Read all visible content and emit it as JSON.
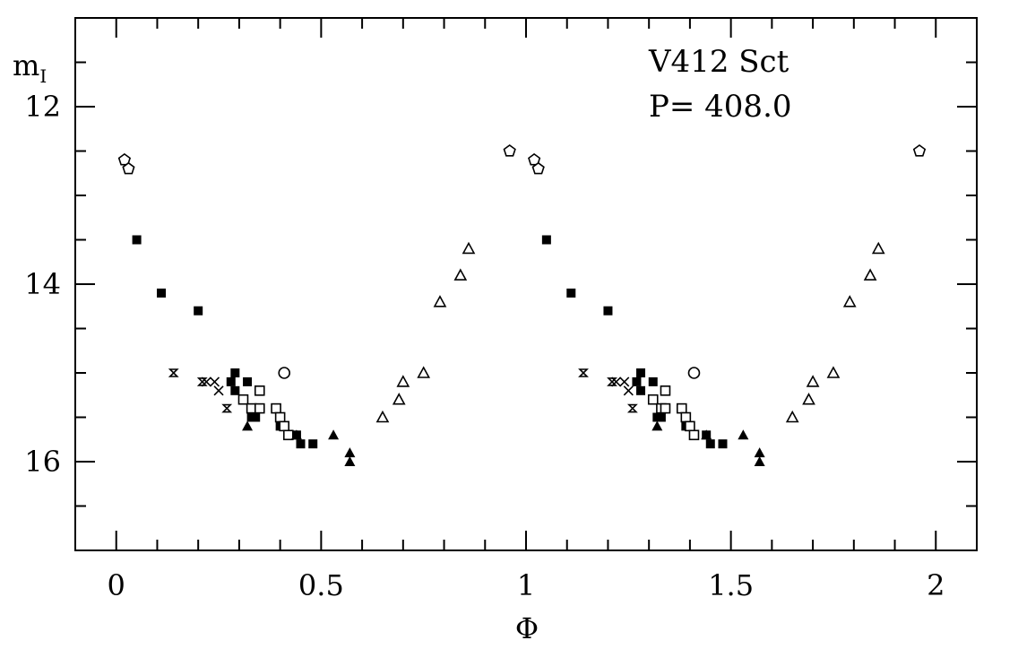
{
  "chart_data": {
    "type": "scatter",
    "title": "",
    "xlabel": "Φ",
    "ylabel_main": "m",
    "ylabel_sub": "I",
    "xlim": [
      -0.1,
      2.1
    ],
    "ylim": [
      17.0,
      11.0
    ],
    "y_inverted": true,
    "grid": false,
    "annotations": [
      "V412 Sct",
      "P= 408.0"
    ],
    "x_ticks": [
      {
        "value": 0,
        "label": "0"
      },
      {
        "value": 0.5,
        "label": "0.5"
      },
      {
        "value": 1,
        "label": "1"
      },
      {
        "value": 1.5,
        "label": "1.5"
      },
      {
        "value": 2,
        "label": "2"
      }
    ],
    "y_ticks": [
      {
        "value": 12,
        "label": "12"
      },
      {
        "value": 14,
        "label": "14"
      },
      {
        "value": 16,
        "label": "16"
      }
    ],
    "x_minor_step": 0.1,
    "y_minor_step": 0.5,
    "series": [
      {
        "marker": "pentagon-open",
        "points": [
          [
            0.02,
            12.6
          ],
          [
            0.03,
            12.7
          ],
          [
            0.96,
            12.5
          ],
          [
            1.02,
            12.6
          ],
          [
            1.03,
            12.7
          ],
          [
            1.96,
            12.5
          ]
        ]
      },
      {
        "marker": "square-filled",
        "points": [
          [
            0.05,
            13.5
          ],
          [
            0.11,
            14.1
          ],
          [
            0.2,
            14.3
          ],
          [
            0.28,
            15.1
          ],
          [
            0.29,
            15.0
          ],
          [
            0.29,
            15.2
          ],
          [
            0.32,
            15.1
          ],
          [
            0.33,
            15.5
          ],
          [
            0.34,
            15.5
          ],
          [
            0.4,
            15.6
          ],
          [
            0.44,
            15.7
          ],
          [
            0.45,
            15.8
          ],
          [
            0.48,
            15.8
          ],
          [
            1.05,
            13.5
          ],
          [
            1.11,
            14.1
          ],
          [
            1.2,
            14.3
          ],
          [
            1.27,
            15.1
          ],
          [
            1.28,
            15.0
          ],
          [
            1.28,
            15.2
          ],
          [
            1.31,
            15.1
          ],
          [
            1.32,
            15.5
          ],
          [
            1.33,
            15.5
          ],
          [
            1.39,
            15.6
          ],
          [
            1.4,
            15.6
          ],
          [
            1.44,
            15.7
          ],
          [
            1.45,
            15.8
          ],
          [
            1.48,
            15.8
          ]
        ]
      },
      {
        "marker": "bowtie",
        "points": [
          [
            0.14,
            15.0
          ],
          [
            0.21,
            15.1
          ],
          [
            0.27,
            15.4
          ],
          [
            1.14,
            15.0
          ],
          [
            1.21,
            15.1
          ],
          [
            1.26,
            15.4
          ]
        ]
      },
      {
        "marker": "cross",
        "points": [
          [
            0.22,
            15.1
          ],
          [
            0.24,
            15.1
          ],
          [
            0.25,
            15.2
          ],
          [
            1.22,
            15.1
          ],
          [
            1.24,
            15.1
          ],
          [
            1.25,
            15.2
          ]
        ]
      },
      {
        "marker": "square-open",
        "points": [
          [
            0.31,
            15.3
          ],
          [
            0.33,
            15.4
          ],
          [
            0.35,
            15.4
          ],
          [
            0.35,
            15.2
          ],
          [
            0.39,
            15.4
          ],
          [
            0.4,
            15.5
          ],
          [
            0.41,
            15.6
          ],
          [
            0.42,
            15.7
          ],
          [
            1.31,
            15.3
          ],
          [
            1.33,
            15.4
          ],
          [
            1.34,
            15.4
          ],
          [
            1.34,
            15.2
          ],
          [
            1.38,
            15.4
          ],
          [
            1.39,
            15.5
          ],
          [
            1.4,
            15.6
          ],
          [
            1.41,
            15.7
          ]
        ]
      },
      {
        "marker": "circle-open",
        "points": [
          [
            0.41,
            15.0
          ],
          [
            1.41,
            15.0
          ]
        ]
      },
      {
        "marker": "triangle-filled",
        "points": [
          [
            0.32,
            15.6
          ],
          [
            0.44,
            15.7
          ],
          [
            0.53,
            15.7
          ],
          [
            0.57,
            15.9
          ],
          [
            0.57,
            16.0
          ],
          [
            1.32,
            15.6
          ],
          [
            1.44,
            15.7
          ],
          [
            1.53,
            15.7
          ],
          [
            1.57,
            15.9
          ],
          [
            1.57,
            16.0
          ]
        ]
      },
      {
        "marker": "triangle-open",
        "points": [
          [
            0.65,
            15.5
          ],
          [
            0.69,
            15.3
          ],
          [
            0.7,
            15.1
          ],
          [
            0.75,
            15.0
          ],
          [
            0.79,
            14.2
          ],
          [
            0.84,
            13.9
          ],
          [
            0.86,
            13.6
          ],
          [
            1.65,
            15.5
          ],
          [
            1.69,
            15.3
          ],
          [
            1.7,
            15.1
          ],
          [
            1.75,
            15.0
          ],
          [
            1.79,
            14.2
          ],
          [
            1.84,
            13.9
          ],
          [
            1.86,
            13.6
          ]
        ]
      }
    ]
  }
}
